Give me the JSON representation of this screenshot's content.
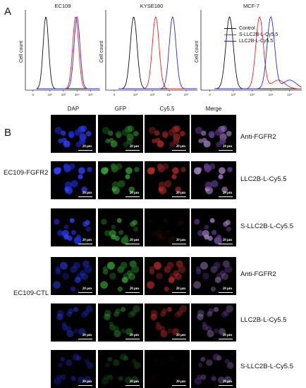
{
  "panel_a": {
    "letter": "A",
    "y_label": "Cell count",
    "panels": [
      {
        "title": "EC109"
      },
      {
        "title": "KYSE180"
      },
      {
        "title": "MCF-7"
      }
    ],
    "ticks": [
      "0",
      "10²",
      "10³",
      "10⁴",
      "10⁵"
    ],
    "legend": [
      {
        "label": "Control",
        "color": "#111111"
      },
      {
        "label": "S-LLC2B-L-Cy5.5",
        "color": "#e8222a"
      },
      {
        "label": "LLC2B-L-Cy5.5",
        "color": "#2a2ad8"
      }
    ]
  },
  "panel_b": {
    "letter": "B",
    "columns": [
      "DAP",
      "GFP",
      "Cy5.5",
      "Merge"
    ],
    "scale_label": "20 μm",
    "groups": [
      {
        "label": "EC109-FGFR2",
        "rows": [
          "Anti-FGFR2",
          "LLC2B-L-Cy5.5",
          "S-LLC2B-L-Cy5.5"
        ]
      },
      {
        "label": "EC109-CTL",
        "rows": [
          "Anti-FGFR2",
          "LLC2B-L-Cy5.5",
          "S-LLC2B-L-Cy5.5"
        ]
      }
    ]
  },
  "chart_data": [
    {
      "type": "line",
      "title": "EC109",
      "ylabel": "Cell count",
      "series": [
        {
          "name": "Control",
          "peak": 0.7,
          "color": "#111111"
        },
        {
          "name": "S-LLC2B-L-Cy5.5",
          "peak": 2.9,
          "color": "#e8222a"
        },
        {
          "name": "LLC2B-L-Cy5.5",
          "peak": 3.0,
          "color": "#2a2ad8"
        }
      ]
    },
    {
      "type": "line",
      "title": "KYSE180",
      "ylabel": "Cell count",
      "series": [
        {
          "name": "Control",
          "peak": 0.9,
          "color": "#111111"
        },
        {
          "name": "S-LLC2B-L-Cy5.5",
          "peak": 2.2,
          "color": "#e8222a"
        },
        {
          "name": "LLC2B-L-Cy5.5",
          "peak": 3.2,
          "color": "#2a2ad8"
        }
      ]
    },
    {
      "type": "line",
      "title": "MCF-7",
      "ylabel": "Cell count",
      "series": [
        {
          "name": "Control",
          "peak": 0.8,
          "color": "#111111"
        },
        {
          "name": "S-LLC2B-L-Cy5.5",
          "peak": 2.4,
          "color": "#e8222a"
        },
        {
          "name": "LLC2B-L-Cy5.5",
          "peak": 3.0,
          "color": "#2a2ad8"
        }
      ]
    }
  ]
}
